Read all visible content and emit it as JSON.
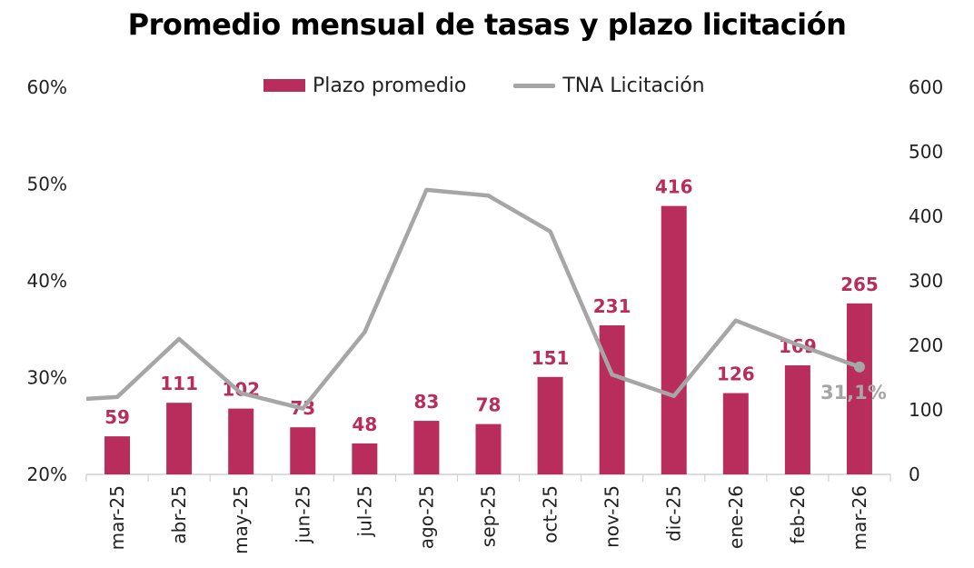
{
  "chart_data": {
    "type": "bar",
    "title": "Promedio mensual de tasas y plazo licitación",
    "categories": [
      "mar-25",
      "abr-25",
      "may-25",
      "jun-25",
      "jul-25",
      "ago-25",
      "sep-25",
      "oct-25",
      "nov-25",
      "dic-25",
      "ene-26",
      "feb-26",
      "mar-26"
    ],
    "series": [
      {
        "name": "Plazo promedio",
        "type": "bar",
        "axis": "right",
        "color": "#b92d5d",
        "values": [
          59,
          111,
          102,
          73,
          48,
          83,
          78,
          151,
          231,
          416,
          126,
          169,
          265
        ],
        "data_labels": [
          "59",
          "111",
          "102",
          "73",
          "48",
          "83",
          "78",
          "151",
          "231",
          "416",
          "126",
          "169",
          "265"
        ]
      },
      {
        "name": "TNA Licitación",
        "type": "line",
        "axis": "left",
        "color": "#a6a6a6",
        "values": [
          28.0,
          34.0,
          28.4,
          26.8,
          34.7,
          49.4,
          48.8,
          45.1,
          30.3,
          28.1,
          35.9,
          33.4,
          31.1
        ],
        "last_label": "31,1%"
      }
    ],
    "left_axis": {
      "ylim": [
        20,
        60
      ],
      "tick_labels": [
        "20%",
        "30%",
        "40%",
        "50%",
        "60%"
      ]
    },
    "right_axis": {
      "ylim": [
        0,
        600
      ],
      "tick_labels": [
        "0",
        "100",
        "200",
        "300",
        "400",
        "500",
        "600"
      ]
    },
    "legend_position": "top"
  }
}
